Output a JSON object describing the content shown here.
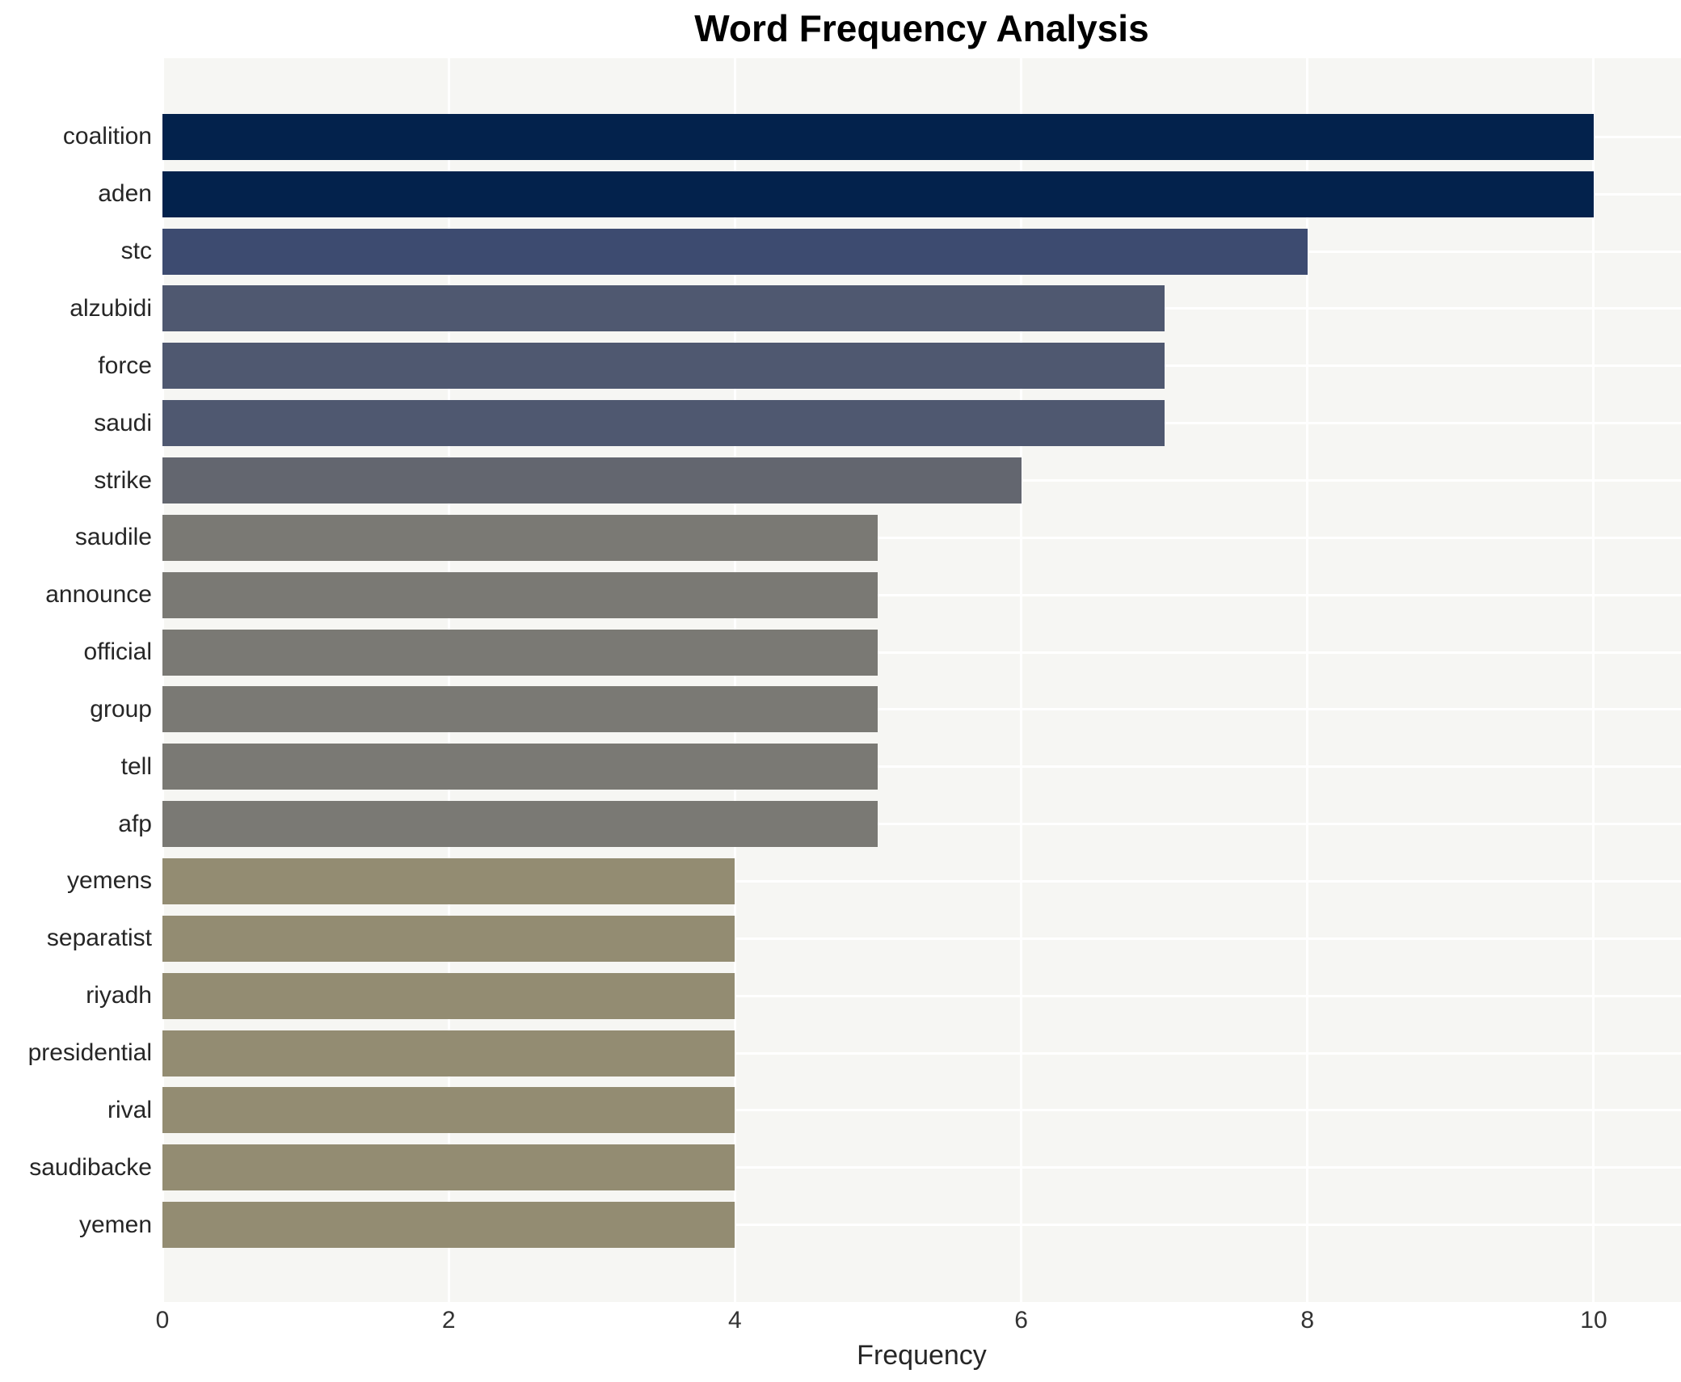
{
  "title": "Word Frequency Analysis",
  "x_axis_title": "Frequency",
  "chart_data": {
    "type": "bar",
    "orientation": "horizontal",
    "title": "Word Frequency Analysis",
    "xlabel": "Frequency",
    "ylabel": "",
    "categories": [
      "coalition",
      "aden",
      "stc",
      "alzubidi",
      "force",
      "saudi",
      "strike",
      "saudile",
      "announce",
      "official",
      "group",
      "tell",
      "afp",
      "yemens",
      "separatist",
      "riyadh",
      "presidential",
      "rival",
      "saudibacke",
      "yemen"
    ],
    "values": [
      10,
      10,
      8,
      7,
      7,
      7,
      6,
      5,
      5,
      5,
      5,
      5,
      5,
      4,
      4,
      4,
      4,
      4,
      4,
      4
    ],
    "bar_colors": [
      "#03224c",
      "#03224c",
      "#3d4b70",
      "#4f5870",
      "#4f5870",
      "#4f5870",
      "#63666f",
      "#7a7974",
      "#7a7974",
      "#7a7974",
      "#7a7974",
      "#7a7974",
      "#7a7974",
      "#938c72",
      "#938c72",
      "#938c72",
      "#938c72",
      "#938c72",
      "#938c72",
      "#938c72"
    ],
    "xticks": [
      0,
      2,
      4,
      6,
      8,
      10
    ],
    "xlim": [
      0,
      10.61
    ],
    "grid": true,
    "legend": "none",
    "plot_background": "#f6f6f3",
    "grid_color": "#ffffff",
    "tick_label_color": "#333333",
    "category_label_color": "#262626"
  }
}
